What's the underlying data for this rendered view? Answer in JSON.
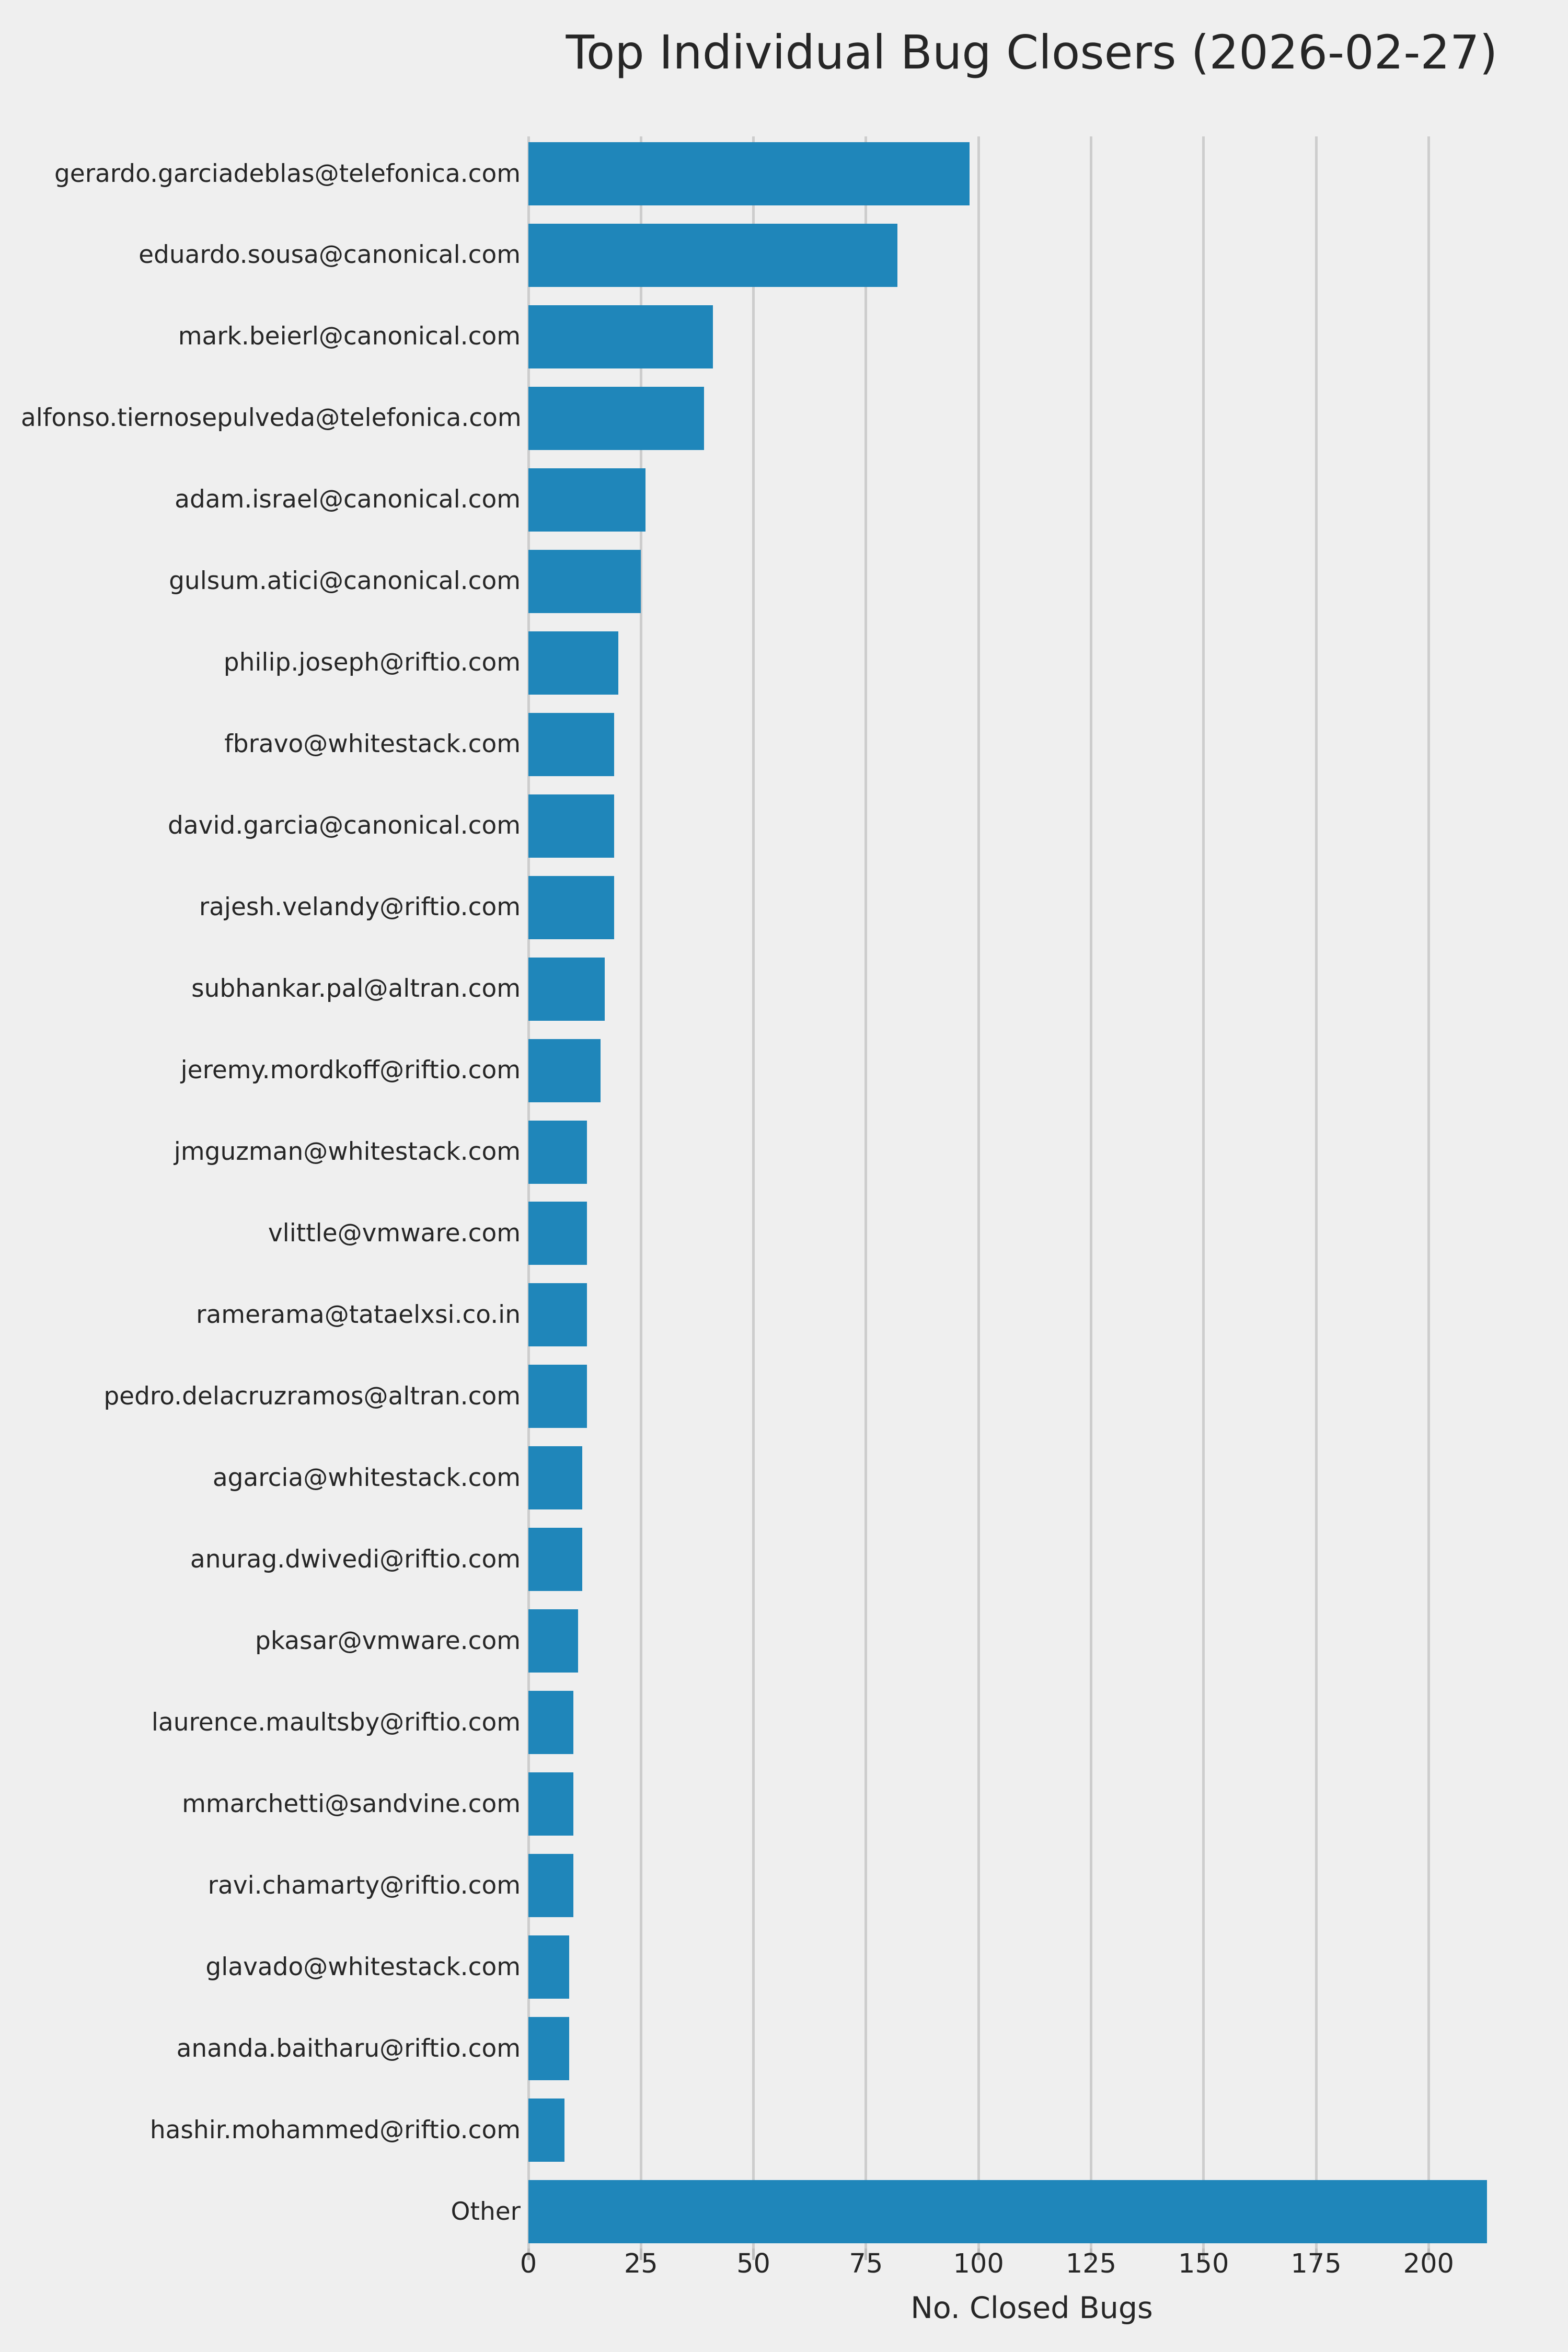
{
  "chart_data": {
    "type": "bar",
    "orientation": "horizontal",
    "title": "Top Individual Bug Closers (2026-02-27)",
    "xlabel": "No. Closed Bugs",
    "ylabel": "",
    "categories": [
      "gerardo.garciadeblas@telefonica.com",
      "eduardo.sousa@canonical.com",
      "mark.beierl@canonical.com",
      "alfonso.tiernosepulveda@telefonica.com",
      "adam.israel@canonical.com",
      "gulsum.atici@canonical.com",
      "philip.joseph@riftio.com",
      "fbravo@whitestack.com",
      "david.garcia@canonical.com",
      "rajesh.velandy@riftio.com",
      "subhankar.pal@altran.com",
      "jeremy.mordkoff@riftio.com",
      "jmguzman@whitestack.com",
      "vlittle@vmware.com",
      "ramerama@tataelxsi.co.in",
      "pedro.delacruzramos@altran.com",
      "agarcia@whitestack.com",
      "anurag.dwivedi@riftio.com",
      "pkasar@vmware.com",
      "laurence.maultsby@riftio.com",
      "mmarchetti@sandvine.com",
      "ravi.chamarty@riftio.com",
      "glavado@whitestack.com",
      "ananda.baitharu@riftio.com",
      "hashir.mohammed@riftio.com",
      "Other"
    ],
    "values": [
      98,
      82,
      41,
      39,
      26,
      25,
      20,
      19,
      19,
      19,
      17,
      16,
      13,
      13,
      13,
      13,
      12,
      12,
      11,
      10,
      10,
      10,
      9,
      9,
      8,
      213
    ],
    "xticks": [
      0,
      25,
      50,
      75,
      100,
      125,
      150,
      175,
      200
    ],
    "xlim": [
      0,
      224
    ],
    "grid": true,
    "legend": false,
    "colors": {
      "bar": "#1f86ba",
      "background": "#efefef",
      "grid": "#cdcdcd",
      "tick": "#bdbdbd",
      "text": "#262626"
    }
  }
}
